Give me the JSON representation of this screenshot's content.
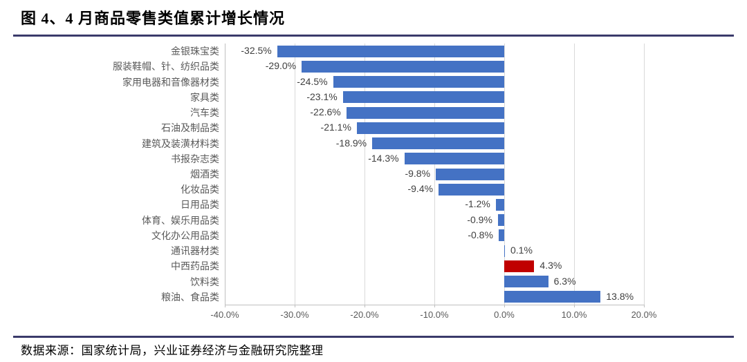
{
  "figure": {
    "title": "图 4、4 月商品零售类值累计增长情况",
    "source": "数据来源：国家统计局，兴业证券经济与金融研究院整理"
  },
  "colors": {
    "bar_default": "#4472C4",
    "bar_highlight": "#C00000",
    "accent_line": "#3A3A6A",
    "gridline": "#D9D9D9",
    "axis_line": "#BFBFBF",
    "category_label": "#595959",
    "value_label": "#3F3F3F",
    "tick_label": "#595959"
  },
  "chart_data": {
    "type": "bar",
    "orientation": "horizontal",
    "title": "图 4、4 月商品零售类值累计增长情况",
    "categories": [
      "金银珠宝类",
      "服装鞋帽、针、纺织品类",
      "家用电器和音像器材类",
      "家具类",
      "汽车类",
      "石油及制品类",
      "建筑及装潢材料类",
      "书报杂志类",
      "烟酒类",
      "化妆品类",
      "日用品类",
      "体育、娱乐用品类",
      "文化办公用品类",
      "通讯器材类",
      "中西药品类",
      "饮料类",
      "粮油、食品类"
    ],
    "values": [
      -32.5,
      -29.0,
      -24.5,
      -23.1,
      -22.6,
      -21.1,
      -18.9,
      -14.3,
      -9.8,
      -9.4,
      -1.2,
      -0.9,
      -0.8,
      0.1,
      4.3,
      6.3,
      13.8
    ],
    "value_labels": [
      "-32.5%",
      "-29.0%",
      "-24.5%",
      "-23.1%",
      "-22.6%",
      "-21.1%",
      "-18.9%",
      "-14.3%",
      "-9.8%",
      "-9.4%",
      "-1.2%",
      "-0.9%",
      "-0.8%",
      "0.1%",
      "4.3%",
      "6.3%",
      "13.8%"
    ],
    "highlight_category": "中西药品类",
    "xlim": [
      -40,
      20
    ],
    "x_tick_values": [
      -40,
      -30,
      -20,
      -10,
      0,
      10,
      20
    ],
    "x_ticks": [
      "-40.0%",
      "-30.0%",
      "-20.0%",
      "-10.0%",
      "0.0%",
      "10.0%",
      "20.0%"
    ],
    "grid": true,
    "data_labels": true,
    "legend": false
  }
}
